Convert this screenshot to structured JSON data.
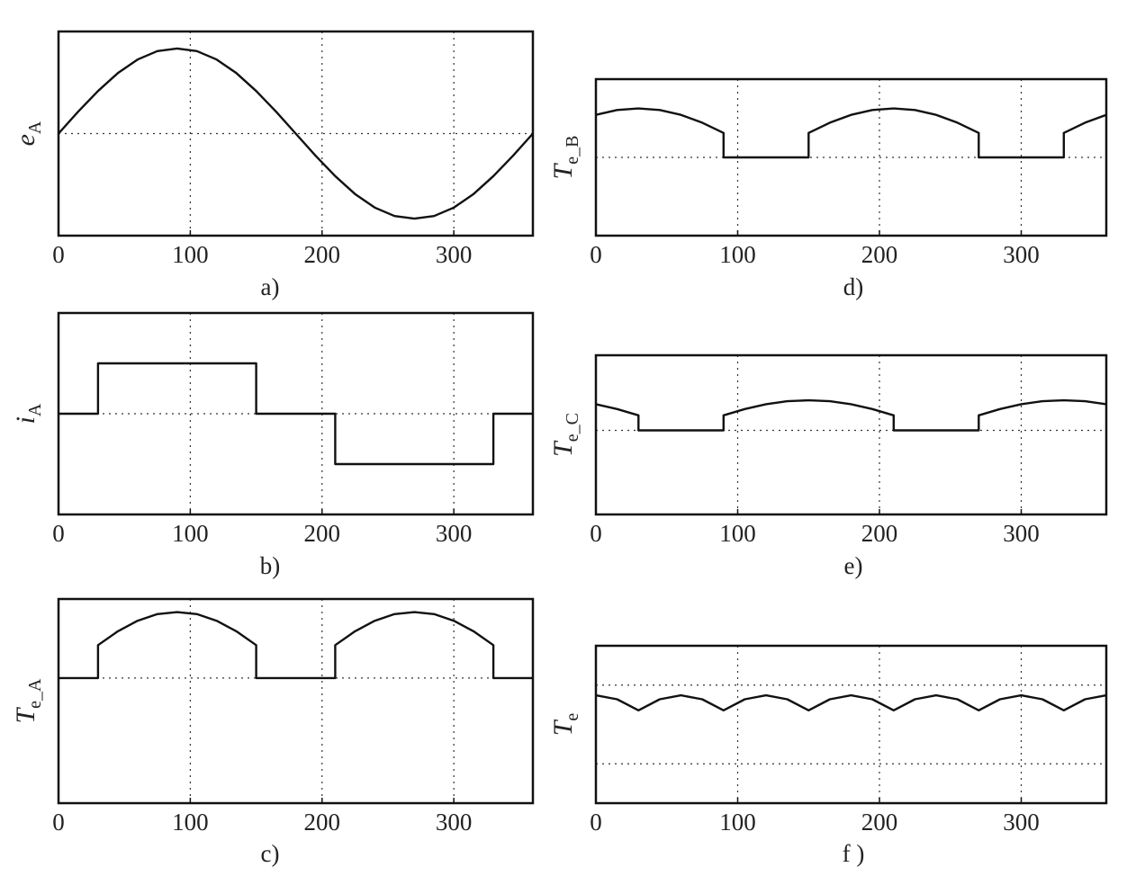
{
  "chart_data": [
    {
      "id": "a",
      "type": "line",
      "caption": "a)",
      "ylabel_main": "e",
      "ylabel_sub": "A",
      "xlim": [
        0,
        360
      ],
      "xticks": [
        0,
        100,
        200,
        300
      ],
      "ylim": [
        -1.2,
        1.2
      ],
      "gridlines_y": [
        0
      ],
      "grid": true,
      "series": [
        {
          "x": [
            0,
            15,
            30,
            45,
            60,
            75,
            90,
            105,
            120,
            135,
            150,
            165,
            180,
            195,
            210,
            225,
            240,
            255,
            270,
            285,
            300,
            315,
            330,
            345,
            360
          ],
          "values": [
            0,
            0.26,
            0.5,
            0.71,
            0.87,
            0.97,
            1,
            0.97,
            0.87,
            0.71,
            0.5,
            0.26,
            0,
            -0.26,
            -0.5,
            -0.71,
            -0.87,
            -0.97,
            -1,
            -0.97,
            -0.87,
            -0.71,
            -0.5,
            -0.26,
            0
          ]
        }
      ]
    },
    {
      "id": "b",
      "type": "line",
      "caption": "b)",
      "ylabel_main": "i",
      "ylabel_sub": "A",
      "xlim": [
        0,
        360
      ],
      "xticks": [
        0,
        100,
        200,
        300
      ],
      "ylim": [
        -2,
        2
      ],
      "gridlines_y": [
        0
      ],
      "grid": true,
      "series": [
        {
          "x": [
            0,
            30,
            30,
            150,
            150,
            210,
            210,
            330,
            330,
            360
          ],
          "values": [
            0,
            0,
            1,
            1,
            0,
            0,
            -1,
            -1,
            0,
            0
          ]
        }
      ]
    },
    {
      "id": "c",
      "type": "line",
      "caption": "c)",
      "ylabel_main": "T",
      "ylabel_sub": "e_A",
      "xlim": [
        0,
        360
      ],
      "xticks": [
        0,
        100,
        200,
        300
      ],
      "ylim": [
        -1.9,
        1.2
      ],
      "gridlines_y": [
        0
      ],
      "grid": true,
      "series": [
        {
          "x": [
            0,
            30,
            30,
            45,
            60,
            75,
            90,
            105,
            120,
            135,
            150,
            150,
            210,
            210,
            225,
            240,
            255,
            270,
            285,
            300,
            315,
            330,
            330,
            360
          ],
          "values": [
            0,
            0,
            0.5,
            0.71,
            0.87,
            0.97,
            1,
            0.97,
            0.87,
            0.71,
            0.5,
            0,
            0,
            0.5,
            0.71,
            0.87,
            0.97,
            1,
            0.97,
            0.87,
            0.71,
            0.5,
            0,
            0
          ]
        }
      ]
    },
    {
      "id": "d",
      "type": "line",
      "caption": "d)",
      "ylabel_main": "T",
      "ylabel_sub": "e_B",
      "xlim": [
        0,
        360
      ],
      "xticks": [
        0,
        100,
        200,
        300
      ],
      "ylim": [
        -1.6,
        1.6
      ],
      "gridlines_y": [
        0
      ],
      "grid": true,
      "series": [
        {
          "x": [
            0,
            15,
            30,
            45,
            60,
            75,
            90,
            90,
            150,
            150,
            165,
            180,
            195,
            210,
            225,
            240,
            255,
            270,
            270,
            330,
            330,
            345,
            360
          ],
          "values": [
            0.87,
            0.97,
            1,
            0.97,
            0.87,
            0.71,
            0.5,
            0,
            0,
            0.5,
            0.71,
            0.87,
            0.97,
            1,
            0.97,
            0.87,
            0.71,
            0.5,
            0,
            0,
            0.5,
            0.71,
            0.87
          ]
        }
      ]
    },
    {
      "id": "e",
      "type": "line",
      "caption": "e)",
      "ylabel_main": "T",
      "ylabel_sub": "e_C",
      "xlim": [
        0,
        360
      ],
      "xticks": [
        0,
        100,
        200,
        300
      ],
      "ylim": [
        -2.8,
        2.5
      ],
      "gridlines_y": [
        0
      ],
      "grid": true,
      "series": [
        {
          "x": [
            0,
            15,
            30,
            30,
            90,
            90,
            105,
            120,
            135,
            150,
            165,
            180,
            195,
            210,
            210,
            270,
            270,
            285,
            300,
            315,
            330,
            345,
            360
          ],
          "values": [
            0.87,
            0.71,
            0.5,
            0,
            0,
            0.5,
            0.71,
            0.87,
            0.97,
            1,
            0.97,
            0.87,
            0.71,
            0.5,
            0,
            0,
            0.5,
            0.71,
            0.87,
            0.97,
            1,
            0.97,
            0.87
          ]
        }
      ]
    },
    {
      "id": "f",
      "type": "line",
      "caption": "f )",
      "ylabel_main": "T",
      "ylabel_sub": "e",
      "xlim": [
        0,
        360
      ],
      "xticks": [
        0,
        100,
        200,
        300
      ],
      "ylim": [
        0,
        2
      ],
      "gridlines_y": [
        0.5,
        1.5
      ],
      "grid": true,
      "series": [
        {
          "x": [
            0,
            15,
            30,
            45,
            60,
            75,
            90,
            105,
            120,
            135,
            150,
            165,
            180,
            195,
            210,
            225,
            240,
            255,
            270,
            285,
            300,
            315,
            330,
            345,
            360
          ],
          "values": [
            1.37,
            1.32,
            1.18,
            1.32,
            1.37,
            1.32,
            1.18,
            1.32,
            1.37,
            1.32,
            1.18,
            1.32,
            1.37,
            1.32,
            1.18,
            1.32,
            1.37,
            1.32,
            1.18,
            1.32,
            1.37,
            1.32,
            1.18,
            1.32,
            1.37
          ]
        }
      ]
    }
  ]
}
